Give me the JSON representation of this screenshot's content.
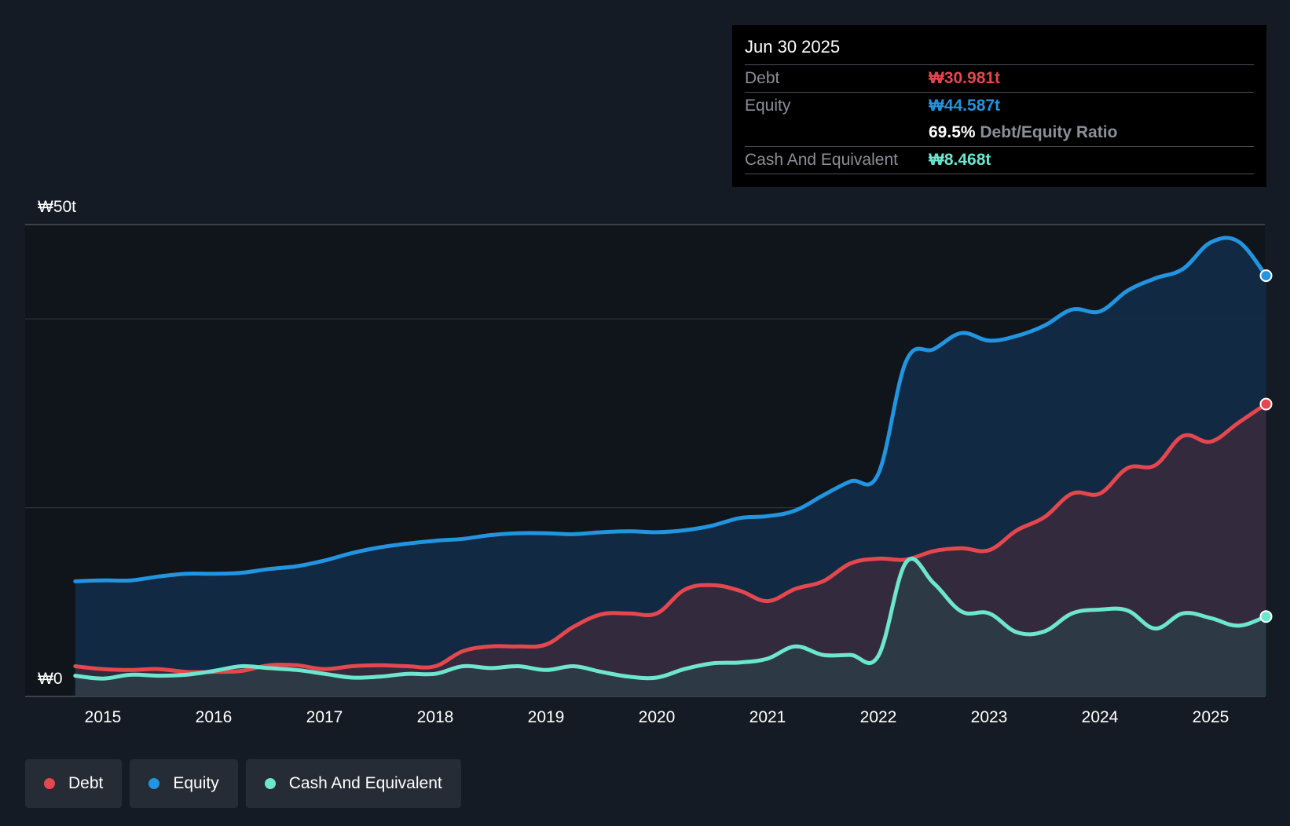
{
  "chart_data": {
    "type": "area",
    "currency_prefix": "₩",
    "y_axis": {
      "labels": [
        "₩50t",
        "₩0"
      ],
      "ylim": [
        0,
        50
      ],
      "unit": "trillion KRW"
    },
    "x_axis": {
      "ticks": [
        "2015",
        "2016",
        "2017",
        "2018",
        "2019",
        "2020",
        "2021",
        "2022",
        "2023",
        "2024",
        "2025"
      ]
    },
    "x": [
      2014.75,
      2015.0,
      2015.25,
      2015.5,
      2015.75,
      2016.0,
      2016.25,
      2016.5,
      2016.75,
      2017.0,
      2017.25,
      2017.5,
      2017.75,
      2018.0,
      2018.25,
      2018.5,
      2018.75,
      2019.0,
      2019.25,
      2019.5,
      2019.75,
      2020.0,
      2020.25,
      2020.5,
      2020.75,
      2021.0,
      2021.25,
      2021.5,
      2021.75,
      2022.0,
      2022.25,
      2022.5,
      2022.75,
      2023.0,
      2023.25,
      2023.5,
      2023.75,
      2024.0,
      2024.25,
      2024.5,
      2024.75,
      2025.0,
      2025.25,
      2025.5
    ],
    "series": [
      {
        "name": "Debt",
        "color": "#e5474f",
        "fill": "#3a2c3c",
        "values": [
          3.2,
          2.9,
          2.8,
          2.9,
          2.6,
          2.6,
          2.7,
          3.3,
          3.3,
          2.9,
          3.2,
          3.3,
          3.2,
          3.2,
          4.8,
          5.3,
          5.3,
          5.5,
          7.4,
          8.7,
          8.8,
          8.8,
          11.3,
          11.8,
          11.2,
          10.1,
          11.4,
          12.2,
          14.1,
          14.6,
          14.5,
          15.4,
          15.7,
          15.5,
          17.6,
          19.0,
          21.5,
          21.5,
          24.2,
          24.5,
          27.6,
          27.0,
          29.0,
          30.981
        ]
      },
      {
        "name": "Equity",
        "color": "#2394df",
        "fill": "#122a44",
        "values": [
          12.2,
          12.3,
          12.3,
          12.7,
          13.0,
          13.0,
          13.1,
          13.5,
          13.8,
          14.4,
          15.2,
          15.8,
          16.2,
          16.5,
          16.7,
          17.1,
          17.3,
          17.3,
          17.2,
          17.4,
          17.5,
          17.4,
          17.6,
          18.1,
          18.9,
          19.1,
          19.7,
          21.3,
          22.8,
          23.6,
          35.5,
          36.8,
          38.5,
          37.7,
          38.2,
          39.3,
          41.0,
          40.8,
          43.0,
          44.3,
          45.3,
          48.1,
          48.2,
          44.587
        ]
      },
      {
        "name": "Cash And Equivalent",
        "color": "#6ee6cf",
        "fill": "#2c4048",
        "values": [
          2.2,
          1.9,
          2.3,
          2.2,
          2.3,
          2.7,
          3.2,
          3.0,
          2.8,
          2.4,
          2.0,
          2.1,
          2.4,
          2.4,
          3.2,
          3.0,
          3.2,
          2.8,
          3.2,
          2.6,
          2.1,
          2.0,
          2.9,
          3.5,
          3.6,
          4.0,
          5.3,
          4.4,
          4.4,
          4.3,
          14.2,
          12.0,
          9.0,
          8.8,
          6.8,
          6.9,
          8.8,
          9.2,
          9.1,
          7.2,
          8.8,
          8.3,
          7.5,
          8.468
        ]
      }
    ],
    "legend": [
      "Debt",
      "Equity",
      "Cash And Equivalent"
    ],
    "legend_position": "bottom-left",
    "grid": true,
    "tooltip": {
      "date": "Jun 30 2025",
      "debt_label": "Debt",
      "debt_value": "₩30.981t",
      "equity_label": "Equity",
      "equity_value": "₩44.587t",
      "ratio_value": "69.5%",
      "ratio_label": "Debt/Equity Ratio",
      "cash_label": "Cash And Equivalent",
      "cash_value": "₩8.468t"
    }
  },
  "colors": {
    "background": "#151b24",
    "plot_bg": "#10141b",
    "grid": "#2d333c",
    "debt": "#e5474f",
    "equity": "#2394df",
    "cash": "#6ee6cf"
  }
}
